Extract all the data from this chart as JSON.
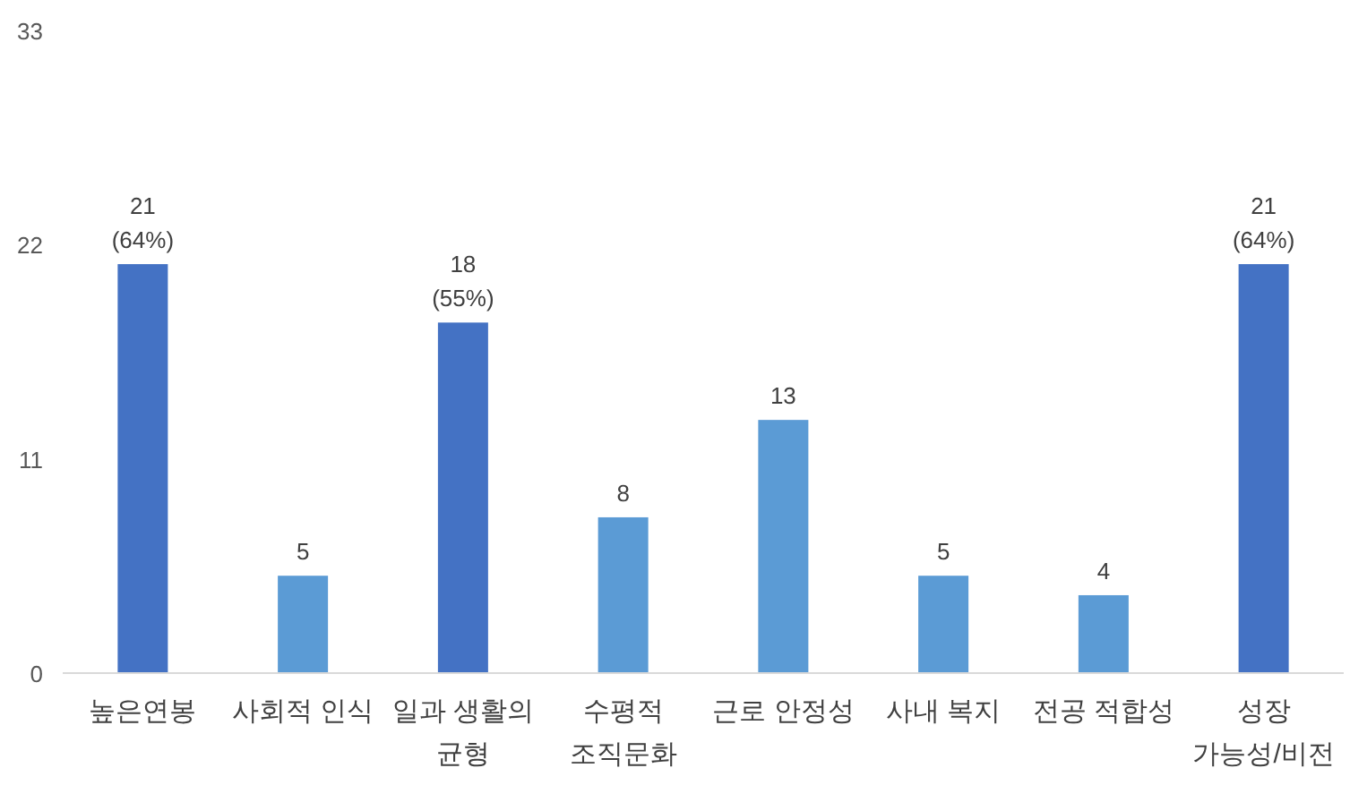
{
  "chart_data": {
    "type": "bar",
    "categories": [
      "높은연봉",
      "사회적 인식",
      "일과 생활의\n균형",
      "수평적\n조직문화",
      "근로 안정성",
      "사내 복지",
      "전공 적합성",
      "성장\n가능성/비전"
    ],
    "values": [
      21,
      5,
      18,
      8,
      13,
      5,
      4,
      21
    ],
    "colors": [
      "#4472c4",
      "#5b9bd5",
      "#4472c4",
      "#5b9bd5",
      "#5b9bd5",
      "#5b9bd5",
      "#5b9bd5",
      "#4472c4"
    ],
    "value_labels": [
      "21\n(64%)",
      "5",
      "18\n(55%)",
      "8",
      "13",
      "5",
      "4",
      "21\n(64%)"
    ],
    "ylim": [
      0,
      33
    ],
    "yticks": [
      0,
      11,
      22,
      33
    ],
    "grid": false
  }
}
